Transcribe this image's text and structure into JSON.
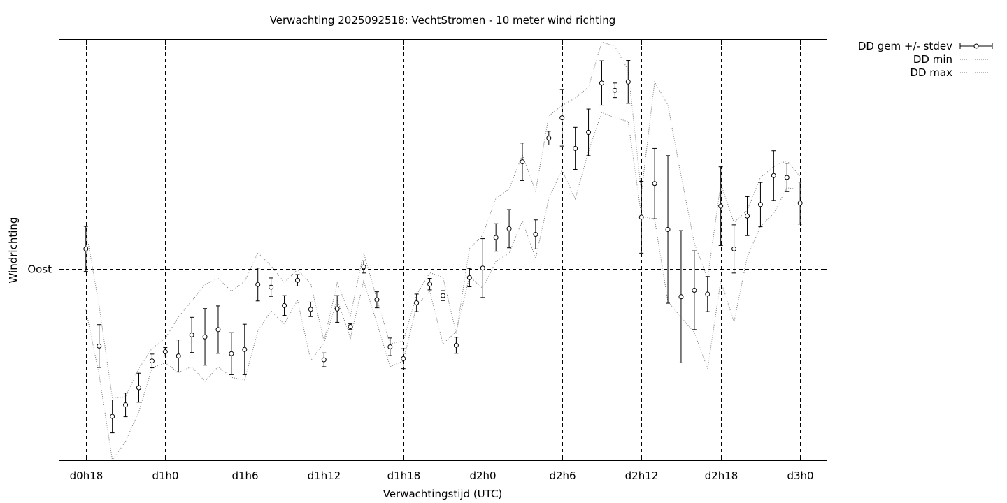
{
  "chart_data": {
    "type": "line",
    "title": "Verwachting 2025092518: VechtStromen - 10 meter wind richting",
    "xlabel": "Verwachtingstijd (UTC)",
    "ylabel": "Windrichting",
    "x_ticks": [
      "d0h18",
      "d1h0",
      "d1h6",
      "d1h12",
      "d1h18",
      "d2h0",
      "d2h6",
      "d2h12",
      "d2h18",
      "d3h0"
    ],
    "x_unit": "forecast hour",
    "x_tick_hours": [
      18,
      24,
      30,
      36,
      42,
      48,
      54,
      60,
      66,
      72
    ],
    "xlim": [
      16,
      74
    ],
    "y_ticks": [
      {
        "label": "Oost",
        "value": 90
      }
    ],
    "ylim": [
      40,
      150
    ],
    "grid": true,
    "legend_position": "top-right-outside",
    "legend": [
      "DD gem +/- stdev",
      "DD min",
      "DD max"
    ],
    "series": [
      {
        "name": "DD gem +/- stdev",
        "style": "points-errorbars",
        "x": [
          18,
          19,
          20,
          21,
          22,
          23,
          24,
          25,
          26,
          27,
          28,
          29,
          30,
          31,
          32,
          33,
          34,
          35,
          36,
          37,
          38,
          39,
          40,
          41,
          42,
          43,
          44,
          45,
          46,
          47,
          48,
          49,
          50,
          51,
          52,
          53,
          54,
          55,
          56,
          57,
          58,
          59,
          60,
          61,
          62,
          63,
          64,
          65,
          66,
          67,
          68,
          69,
          70,
          71,
          72
        ],
        "y": [
          95.3,
          69.9,
          51.5,
          54.5,
          59.0,
          66.0,
          68.4,
          67.3,
          72.8,
          72.3,
          74.2,
          67.9,
          69.0,
          86.0,
          85.3,
          80.5,
          87.1,
          79.5,
          66.3,
          79.6,
          75.0,
          90.6,
          82.0,
          69.7,
          66.6,
          81.2,
          86.1,
          83.1,
          70.1,
          87.8,
          90.3,
          98.3,
          100.6,
          118.1,
          99.1,
          124.3,
          129.6,
          121.6,
          125.8,
          138.7,
          136.8,
          139.0,
          103.6,
          112.4,
          100.4,
          82.8,
          84.5,
          83.5,
          106.5,
          95.3,
          103.9,
          106.9,
          114.5,
          114.0,
          107.3
        ],
        "stdev": [
          5.9,
          5.6,
          4.3,
          3.1,
          3.8,
          1.8,
          1.1,
          4.2,
          4.6,
          7.4,
          6.2,
          5.5,
          6.6,
          4.3,
          2.4,
          2.6,
          1.5,
          1.9,
          1.8,
          3.5,
          0.7,
          1.6,
          2.1,
          2.3,
          2.6,
          2.3,
          1.5,
          1.3,
          2.1,
          2.4,
          7.7,
          3.6,
          5.0,
          4.9,
          3.8,
          1.8,
          7.4,
          5.5,
          6.1,
          5.8,
          1.9,
          5.6,
          9.4,
          9.2,
          19.3,
          17.3,
          10.3,
          4.6,
          10.3,
          6.3,
          5.1,
          5.8,
          6.5,
          3.7,
          5.5
        ]
      },
      {
        "name": "DD min",
        "style": "dotted",
        "x": [
          18,
          19,
          20,
          21,
          22,
          23,
          24,
          25,
          26,
          27,
          28,
          29,
          30,
          31,
          32,
          33,
          34,
          35,
          36,
          37,
          38,
          39,
          40,
          41,
          42,
          43,
          44,
          45,
          46,
          47,
          48,
          49,
          50,
          51,
          52,
          53,
          54,
          55,
          56,
          57,
          58,
          59,
          60,
          61,
          62,
          63,
          64,
          65,
          66,
          67,
          68,
          69,
          70,
          71,
          72
        ],
        "y": [
          79.4,
          62.4,
          40.0,
          45.0,
          52.7,
          64.2,
          65.5,
          63.0,
          64.5,
          60.7,
          64.5,
          61.7,
          61.0,
          73.8,
          79.1,
          75.6,
          81.9,
          66.1,
          70.7,
          82.1,
          72.0,
          86.9,
          76.0,
          64.5,
          66.0,
          80.5,
          84.2,
          70.5,
          73.7,
          88.1,
          85.0,
          92.1,
          94.2,
          102.7,
          92.8,
          108.5,
          116.0,
          108.4,
          120.9,
          131.0,
          129.6,
          128.6,
          103.9,
          103.0,
          81.6,
          77.4,
          73.5,
          64.0,
          87.0,
          76.2,
          93.2,
          101.2,
          104.6,
          111.3,
          110.8
        ]
      },
      {
        "name": "DD max",
        "style": "dotted",
        "x": [
          18,
          19,
          20,
          21,
          22,
          23,
          24,
          25,
          26,
          27,
          28,
          29,
          30,
          31,
          32,
          33,
          34,
          35,
          36,
          37,
          38,
          39,
          40,
          41,
          42,
          43,
          44,
          45,
          46,
          47,
          48,
          49,
          50,
          51,
          52,
          53,
          54,
          55,
          56,
          57,
          58,
          59,
          60,
          61,
          62,
          63,
          64,
          65,
          66,
          67,
          68,
          69,
          70,
          71,
          72
        ],
        "y": [
          100.4,
          80.5,
          56.3,
          56.7,
          64.0,
          69.3,
          71.9,
          77.5,
          81.7,
          86.0,
          87.6,
          84.3,
          86.8,
          94.3,
          90.9,
          86.5,
          89.9,
          86.2,
          71.2,
          86.4,
          77.8,
          94.3,
          82.2,
          70.5,
          71.2,
          83.3,
          89.1,
          87.9,
          73.2,
          95.4,
          98.9,
          108.6,
          111.0,
          119.9,
          110.4,
          130.1,
          132.8,
          134.8,
          137.7,
          149.4,
          148.3,
          142.0,
          110.0,
          139.0,
          133.0,
          114.5,
          96.8,
          87.6,
          112.4,
          102.2,
          105.4,
          114.0,
          116.8,
          118.4,
          114.2
        ]
      }
    ]
  }
}
